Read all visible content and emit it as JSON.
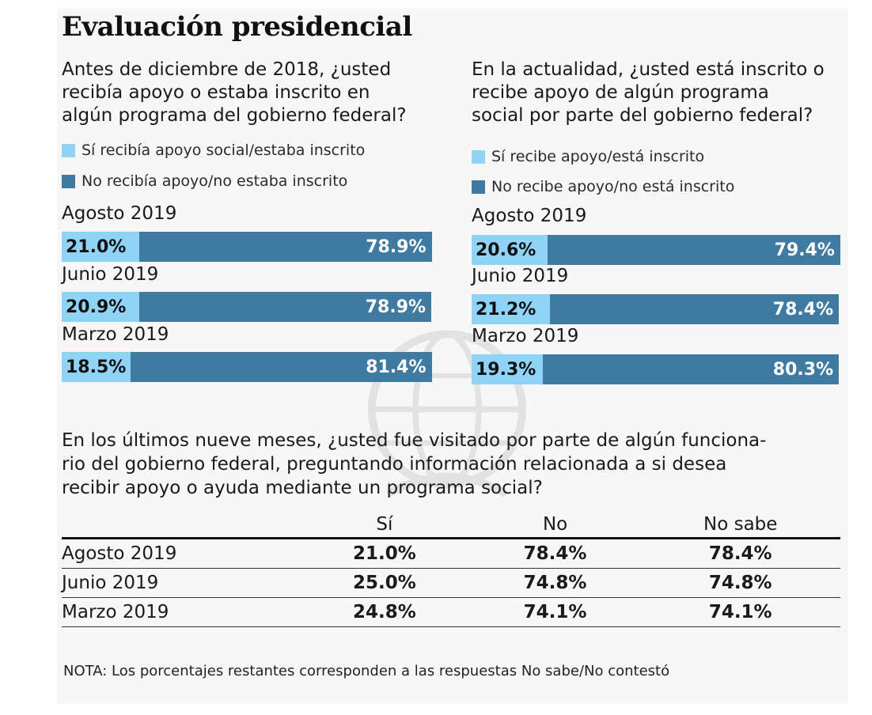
{
  "title": "Evaluación presidencial",
  "colors": {
    "si": "#8fd3f6",
    "no": "#3f7aa3"
  },
  "chart_data": [
    {
      "type": "bar",
      "orientation": "horizontal-stacked",
      "question_lines": [
        "Antes de diciembre de 2018, ¿usted",
        "recibía apoyo o estaba inscrito en",
        "algún programa del gobierno federal?"
      ],
      "legend": [
        "Sí recibía apoyo social/estaba inscrito",
        "No recibía apoyo/no estaba inscrito"
      ],
      "categories": [
        "Agosto 2019",
        "Junio 2019",
        "Marzo 2019"
      ],
      "series": [
        {
          "name": "Sí recibía apoyo social/estaba inscrito",
          "values": [
            21.0,
            20.9,
            18.5
          ],
          "labels": [
            "21.0%",
            "20.9%",
            "18.5%"
          ]
        },
        {
          "name": "No recibía apoyo/no estaba inscrito",
          "values": [
            78.9,
            78.9,
            81.4
          ],
          "labels": [
            "78.9%",
            "78.9%",
            "81.4%"
          ]
        }
      ]
    },
    {
      "type": "bar",
      "orientation": "horizontal-stacked",
      "question_lines": [
        "En la actualidad, ¿usted está inscrito o",
        "recibe apoyo de algún programa",
        "social por parte del gobierno federal?"
      ],
      "legend": [
        "Sí recibe apoyo/está inscrito",
        "No recibe apoyo/no está inscrito"
      ],
      "categories": [
        "Agosto 2019",
        "Junio 2019",
        "Marzo 2019"
      ],
      "series": [
        {
          "name": "Sí recibe apoyo/está inscrito",
          "values": [
            20.6,
            21.2,
            19.3
          ],
          "labels": [
            "20.6%",
            "21.2%",
            "19.3%"
          ]
        },
        {
          "name": "No recibe apoyo/no está inscrito",
          "values": [
            79.4,
            78.4,
            80.3
          ],
          "labels": [
            "79.4%",
            "78.4%",
            "80.3%"
          ]
        }
      ]
    },
    {
      "type": "table",
      "question_lines": [
        "En los últimos nueve meses, ¿usted fue visitado por parte de algún funciona-",
        "rio del gobierno federal, preguntando información relacionada a si desea",
        "recibir apoyo o ayuda mediante un programa social?"
      ],
      "columns": [
        "Sí",
        "No",
        "No sabe"
      ],
      "rows": [
        {
          "label": "Agosto 2019",
          "values": [
            "21.0%",
            "78.4%",
            "78.4%"
          ]
        },
        {
          "label": "Junio 2019",
          "values": [
            "25.0%",
            "74.8%",
            "74.8%"
          ]
        },
        {
          "label": "Marzo 2019",
          "values": [
            "24.8%",
            "74.1%",
            "74.1%"
          ]
        }
      ]
    }
  ],
  "note": "NOTA: Los porcentajes restantes corresponden a las respuestas No sabe/No contestó"
}
